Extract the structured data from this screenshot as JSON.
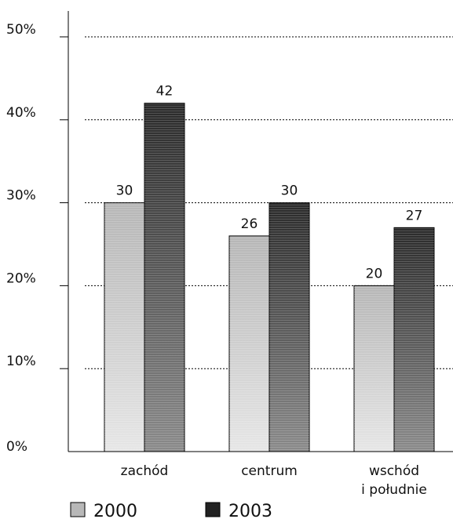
{
  "chart_data": {
    "type": "bar",
    "categories": [
      [
        "zachód"
      ],
      [
        "centrum"
      ],
      [
        "wschód",
        "i południe"
      ]
    ],
    "series": [
      {
        "name": "2000",
        "values": [
          30,
          26,
          20
        ],
        "color": "#c8c8c8"
      },
      {
        "name": "2003",
        "values": [
          42,
          30,
          27
        ],
        "color": "#303030"
      }
    ],
    "value_labels": [
      [
        "30",
        "26",
        "20"
      ],
      [
        "42",
        "30",
        "27"
      ]
    ],
    "ylim": [
      0,
      50
    ],
    "yticks": [
      0,
      10,
      20,
      30,
      40,
      50
    ],
    "ytick_labels": [
      "0%",
      "10%",
      "20%",
      "30%",
      "40%",
      "50%"
    ],
    "grid": "dotted horizontal",
    "legend": "bottom-left",
    "title": "",
    "xlabel": "",
    "ylabel": ""
  }
}
